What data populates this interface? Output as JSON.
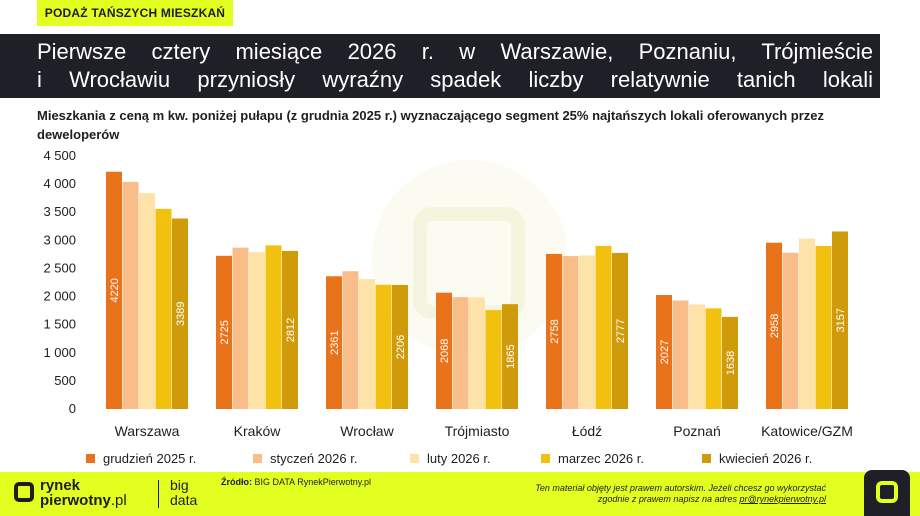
{
  "header": {
    "tag": "PODAŻ TAŃSZYCH MIESZKAŃ",
    "title_line1": "Pierwsze cztery miesiące 2026 r. w Warszawie, Poznaniu, Trójmieście",
    "title_line2": "i Wrocławiu przyniosły wyraźny spadek liczby relatywnie tanich lokali",
    "subtitle": "Mieszkania z ceną m kw. poniżej pułapu (z grudnia 2025 r.) wyznaczającego segment 25% najtańszych lokali oferowanych przez deweloperów"
  },
  "chart_data": {
    "type": "bar",
    "categories": [
      "Warszawa",
      "Kraków",
      "Wrocław",
      "Trójmiasto",
      "Łódź",
      "Poznań",
      "Katowice/GZM"
    ],
    "ylim": [
      0,
      4500
    ],
    "yticks": [
      0,
      500,
      1000,
      1500,
      2000,
      2500,
      3000,
      3500,
      4000,
      4500
    ],
    "ytick_labels": [
      "0",
      "500",
      "1 000",
      "1 500",
      "2 000",
      "2 500",
      "3 000",
      "3 500",
      "4 000",
      "4 500"
    ],
    "grid": false,
    "legend_position": "bottom",
    "series": [
      {
        "name": "grudzień 2025 r.",
        "color": "#e8731a",
        "values": [
          4220,
          2725,
          2361,
          2068,
          2758,
          2027,
          2958
        ],
        "labelled": true
      },
      {
        "name": "styczeń 2026 r.",
        "color": "#f9bd8a",
        "values": [
          4040,
          2870,
          2450,
          1990,
          2720,
          1930,
          2780
        ],
        "labelled": false
      },
      {
        "name": "luty 2026 r.",
        "color": "#fde3a7",
        "values": [
          3840,
          2790,
          2310,
          1985,
          2730,
          1860,
          3030
        ],
        "labelled": false
      },
      {
        "name": "marzec 2026 r.",
        "color": "#f2c10f",
        "values": [
          3560,
          2910,
          2210,
          1760,
          2900,
          1790,
          2900
        ],
        "labelled": false
      },
      {
        "name": "kwiecień 2026 r.",
        "color": "#cf9b0a",
        "values": [
          3389,
          2812,
          2206,
          1865,
          2777,
          1638,
          3157
        ],
        "labelled": true
      }
    ]
  },
  "footer": {
    "logo_line1": "rynek",
    "logo_line2": "pierwotny",
    "logo_suffix": ".pl",
    "brand_line1": "big",
    "brand_line2": "data",
    "source_label": "Źródło:",
    "source_text": "BIG DATA RynekPierwotny.pl",
    "copyright_line1": "Ten materiał objęty jest prawem autorskim. Jeżeli chcesz go wykorzystać",
    "copyright_line2": "zgodnie z prawem napisz na adres",
    "copyright_email": "pr@rynekpierwotny.pl"
  }
}
